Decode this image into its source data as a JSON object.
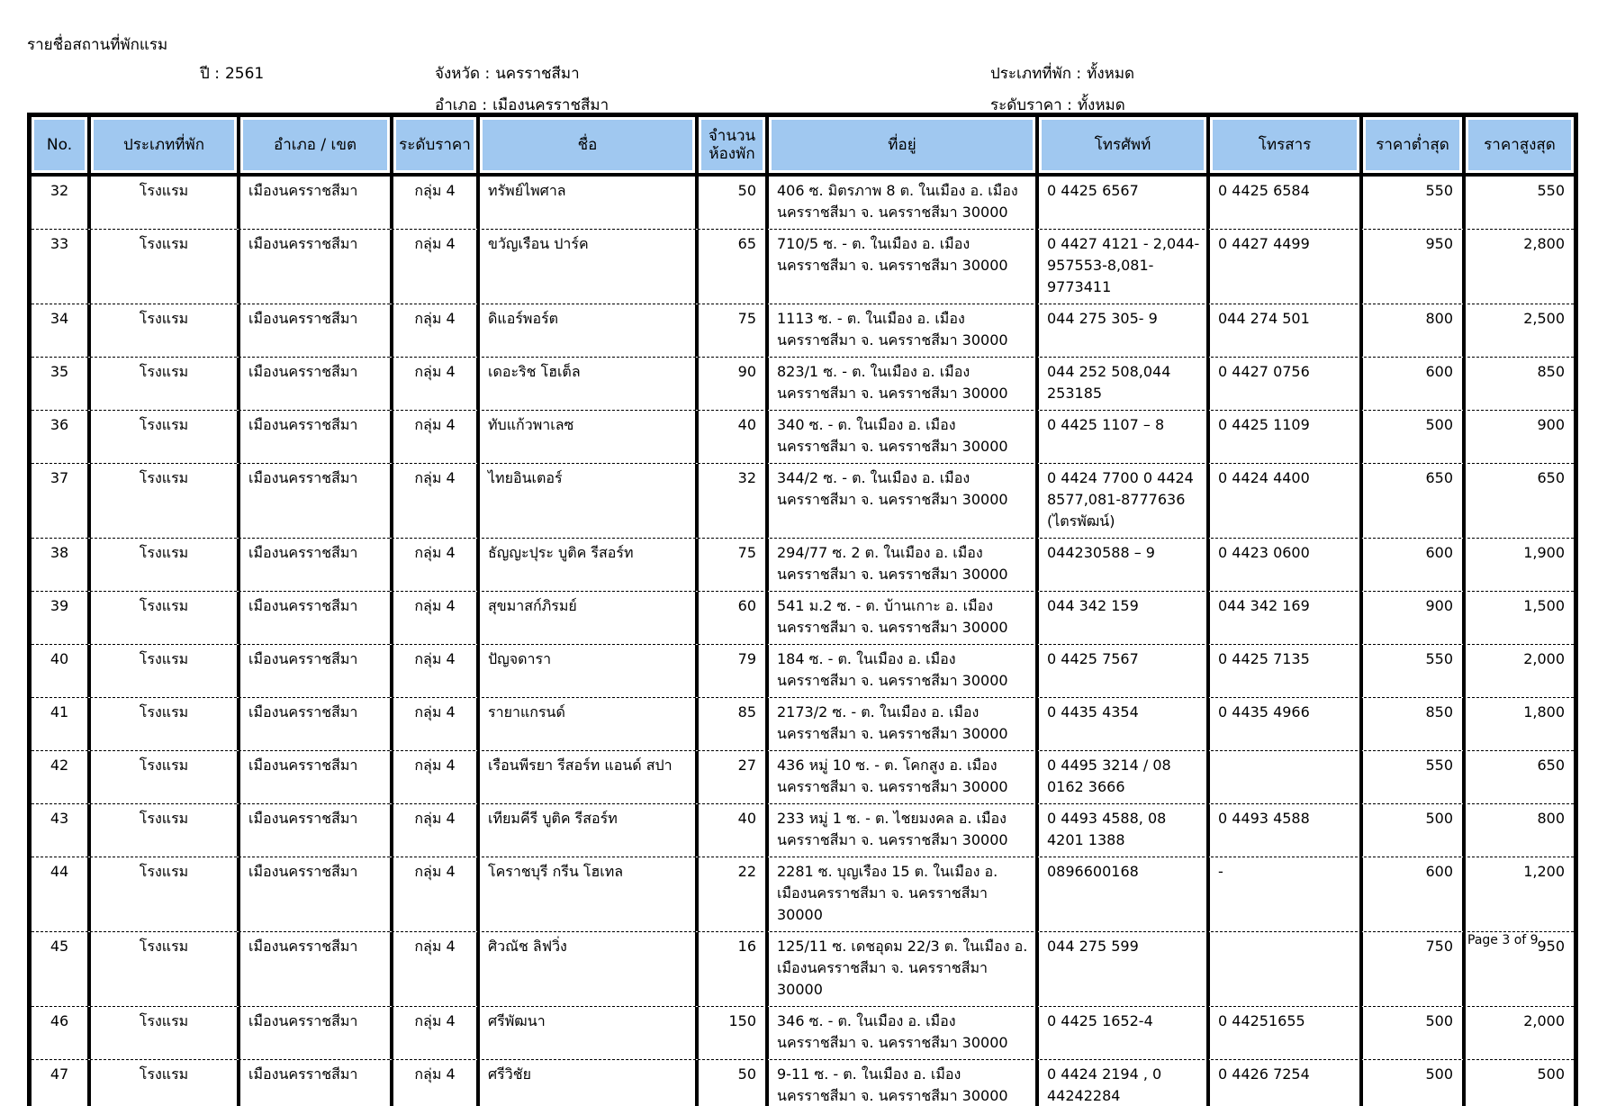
{
  "page": {
    "title": "รายชื่อสถานที่พักแรม",
    "footer": "Page 3 of 9"
  },
  "colors": {
    "header_bg": "#A0C8F0"
  },
  "filters": {
    "year_label": "ปี :",
    "year_value": "2561",
    "province_label": "จังหวัด :",
    "province_value": "นครราชสีมา",
    "district_label": "อำเภอ :",
    "district_value": "เมืองนครราชสีมา",
    "type_label": "ประเภทที่พัก :",
    "type_value": "ทั้งหมด",
    "price_label": "ระดับราคา :",
    "price_value": "ทั้งหมด"
  },
  "table": {
    "headers": {
      "no": "No.",
      "type": "ประเภทที่พัก",
      "district": "อำเภอ / เขต",
      "price_level": "ระดับราคา",
      "name": "ชื่อ",
      "rooms_line1": "จำนวน",
      "rooms_line2": "ห้องพัก",
      "address": "ที่อยู่",
      "phone": "โทรศัพท์",
      "fax": "โทรสาร",
      "min_price": "ราคาต่ำสุด",
      "max_price": "ราคาสูงสุด"
    },
    "rows": [
      {
        "no": "32",
        "type": "โรงแรม",
        "district": "เมืองนครราชสีมา",
        "price_level": "กลุ่ม 4",
        "name": "ทรัพย์ไพศาล",
        "rooms": "50",
        "address": "406 ซ. มิตรภาพ 8  ต. ในเมือง อ. เมืองนครราชสีมา จ. นครราชสีมา 30000",
        "phone": "0 4425 6567",
        "fax": "0 4425 6584",
        "min_price": "550",
        "max_price": "550"
      },
      {
        "no": "33",
        "type": "โรงแรม",
        "district": "เมืองนครราชสีมา",
        "price_level": "กลุ่ม 4",
        "name": "ขวัญเรือน ปาร์ค",
        "rooms": "65",
        "address": "710/5 ซ. - ต. ในเมือง อ. เมืองนครราชสีมา จ. นครราชสีมา 30000",
        "phone": "0 4427 4121 - 2,044-957553-8,081-9773411",
        "fax": "0 4427 4499",
        "min_price": "950",
        "max_price": "2,800"
      },
      {
        "no": "34",
        "type": "โรงแรม",
        "district": "เมืองนครราชสีมา",
        "price_level": "กลุ่ม 4",
        "name": "ดิแอร์พอร์ต",
        "rooms": "75",
        "address": "1113  ซ. - ต. ในเมือง อ. เมืองนครราชสีมา จ. นครราชสีมา 30000",
        "phone": "044 275 305- 9",
        "fax": "044 274 501",
        "min_price": "800",
        "max_price": "2,500"
      },
      {
        "no": "35",
        "type": "โรงแรม",
        "district": "เมืองนครราชสีมา",
        "price_level": "กลุ่ม 4",
        "name": "เดอะริช โฮเต็ล",
        "rooms": "90",
        "address": "823/1  ซ. - ต. ในเมือง อ. เมืองนครราชสีมา จ. นครราชสีมา 30000",
        "phone": "044 252 508,044 253185",
        "fax": "0 4427 0756",
        "min_price": "600",
        "max_price": "850"
      },
      {
        "no": "36",
        "type": "โรงแรม",
        "district": "เมืองนครราชสีมา",
        "price_level": "กลุ่ม 4",
        "name": "ทับแก้วพาเลซ",
        "rooms": "40",
        "address": "340  ซ. - ต. ในเมือง อ. เมืองนครราชสีมา จ. นครราชสีมา 30000",
        "phone": "0 4425 1107 – 8",
        "fax": "0 4425 1109",
        "min_price": "500",
        "max_price": "900"
      },
      {
        "no": "37",
        "type": "โรงแรม",
        "district": "เมืองนครราชสีมา",
        "price_level": "กลุ่ม 4",
        "name": "ไทยอินเตอร์",
        "rooms": "32",
        "address": "344/2  ซ. - ต. ในเมือง อ. เมืองนครราชสีมา จ. นครราชสีมา 30000",
        "phone": "0 4424 7700   0 4424 8577,081-8777636 (ไตรพัฒน์)",
        "fax": "0 4424 4400",
        "min_price": "650",
        "max_price": "650"
      },
      {
        "no": "38",
        "type": "โรงแรม",
        "district": "เมืองนครราชสีมา",
        "price_level": "กลุ่ม 4",
        "name": "ธัญญะปุระ บูติค รีสอร์ท",
        "rooms": "75",
        "address": "294/77  ซ. 2 ต. ในเมือง อ. เมืองนครราชสีมา จ. นครราชสีมา 30000",
        "phone": "044230588 – 9",
        "fax": "0 4423 0600",
        "min_price": "600",
        "max_price": "1,900"
      },
      {
        "no": "39",
        "type": "โรงแรม",
        "district": "เมืองนครราชสีมา",
        "price_level": "กลุ่ม 4",
        "name": "สุขมาสก์ภิรมย์",
        "rooms": "60",
        "address": "541 ม.2 ซ. - ต. บ้านเกาะ อ. เมืองนครราชสีมา จ. นครราชสีมา 30000",
        "phone": "044 342 159",
        "fax": "044 342 169",
        "min_price": "900",
        "max_price": "1,500"
      },
      {
        "no": "40",
        "type": "โรงแรม",
        "district": "เมืองนครราชสีมา",
        "price_level": "กลุ่ม 4",
        "name": "ปัญจดารา",
        "rooms": "79",
        "address": "184 ซ. - ต. ในเมือง อ. เมืองนครราชสีมา จ. นครราชสีมา 30000",
        "phone": "0 4425 7567",
        "fax": "0 4425 7135",
        "min_price": "550",
        "max_price": "2,000"
      },
      {
        "no": "41",
        "type": "โรงแรม",
        "district": "เมืองนครราชสีมา",
        "price_level": "กลุ่ม 4",
        "name": "รายาแกรนด์",
        "rooms": "85",
        "address": "2173/2  ซ. - ต. ในเมือง อ. เมืองนครราชสีมา จ. นครราชสีมา 30000",
        "phone": "0 4435 4354",
        "fax": "0 4435 4966",
        "min_price": "850",
        "max_price": "1,800"
      },
      {
        "no": "42",
        "type": "โรงแรม",
        "district": "เมืองนครราชสีมา",
        "price_level": "กลุ่ม 4",
        "name": "เรือนพีรยา รีสอร์ท แอนด์ สปา",
        "rooms": "27",
        "address": "436 หมู่ 10  ซ. - ต. โคกสูง อ. เมืองนครราชสีมา จ. นครราชสีมา 30000",
        "phone": "0 4495 3214 / 08 0162 3666",
        "fax": "",
        "min_price": "550",
        "max_price": "650"
      },
      {
        "no": "43",
        "type": "โรงแรม",
        "district": "เมืองนครราชสีมา",
        "price_level": "กลุ่ม 4",
        "name": "เทียมคีรี  บูติค รีสอร์ท",
        "rooms": "40",
        "address": "233 หมู่ 1 ซ. - ต. ไชยมงคล อ. เมืองนครราชสีมา จ. นครราชสีมา 30000",
        "phone": "0 4493 4588, 08 4201 1388",
        "fax": "0 4493 4588",
        "min_price": "500",
        "max_price": "800"
      },
      {
        "no": "44",
        "type": "โรงแรม",
        "district": "เมืองนครราชสีมา",
        "price_level": "กลุ่ม 4",
        "name": "โคราชบุรี กรีน โฮเทล",
        "rooms": "22",
        "address": "2281 ซ. บุญเรือง 15 ต. ในเมือง อ. เมืองนครราชสีมา จ. นครราชสีมา 30000",
        "phone": "0896600168",
        "fax": "-",
        "min_price": "600",
        "max_price": "1,200"
      },
      {
        "no": "45",
        "type": "โรงแรม",
        "district": "เมืองนครราชสีมา",
        "price_level": "กลุ่ม 4",
        "name": "ศิวณัช ลิฟวิ่ง",
        "rooms": "16",
        "address": "125/11 ซ. เดชอุดม 22/3 ต. ในเมือง อ. เมืองนครราชสีมา จ. นครราชสีมา 30000",
        "phone": "044 275 599",
        "fax": "",
        "min_price": "750",
        "max_price": "950"
      },
      {
        "no": "46",
        "type": "โรงแรม",
        "district": "เมืองนครราชสีมา",
        "price_level": "กลุ่ม 4",
        "name": "ศรีพัฒนา",
        "rooms": "150",
        "address": "346  ซ. - ต. ในเมือง อ. เมืองนครราชสีมา จ. นครราชสีมา 30000",
        "phone": "0 4425 1652-4",
        "fax": "0 44251655",
        "min_price": "500",
        "max_price": "2,000"
      },
      {
        "no": "47",
        "type": "โรงแรม",
        "district": "เมืองนครราชสีมา",
        "price_level": "กลุ่ม 4",
        "name": "ศรีวิชัย",
        "rooms": "50",
        "address": "9-11  ซ. - ต. ในเมือง อ. เมืองนครราชสีมา จ. นครราชสีมา 30000",
        "phone": "0 4424 2194 , 0 44242284",
        "fax": "0 4426 7254",
        "min_price": "500",
        "max_price": "500"
      }
    ]
  }
}
